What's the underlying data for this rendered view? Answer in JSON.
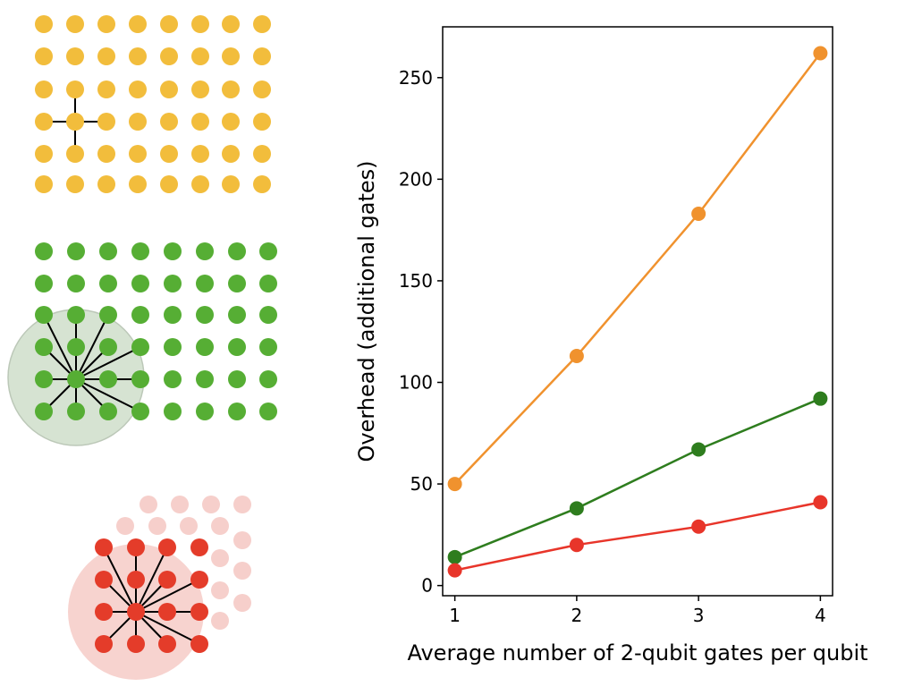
{
  "chart_data": {
    "type": "line",
    "title": "",
    "xlabel": "Average number of 2-qubit gates per qubit",
    "ylabel": "Overhead (additional gates)",
    "x": [
      1,
      2,
      3,
      4
    ],
    "xticks": [
      1,
      2,
      3,
      4
    ],
    "yticks": [
      0,
      50,
      100,
      150,
      200,
      250
    ],
    "xlim": [
      0.9,
      4.1
    ],
    "ylim": [
      -5,
      275
    ],
    "grid": false,
    "legend": "none",
    "series": [
      {
        "color": "#f0922e",
        "values": [
          50,
          113,
          183,
          262
        ]
      },
      {
        "color": "#2e7d1e",
        "values": [
          14,
          38,
          67,
          92
        ]
      },
      {
        "color": "#e8352a",
        "values": [
          7.5,
          20,
          29,
          41
        ]
      }
    ]
  },
  "illustrations": [
    {
      "lattice": "square grid, nearest-neighbour connectivity",
      "color": "#f2bd3c"
    },
    {
      "lattice": "square grid, long-range connectivity",
      "color": "#56ae34",
      "region_color": "#d6e3d2"
    },
    {
      "lattice": "triangular lattice, long-range connectivity",
      "color": "#e43c2a",
      "faded_color": "#f6cfcb",
      "region_color": "#f7d3cf"
    }
  ]
}
